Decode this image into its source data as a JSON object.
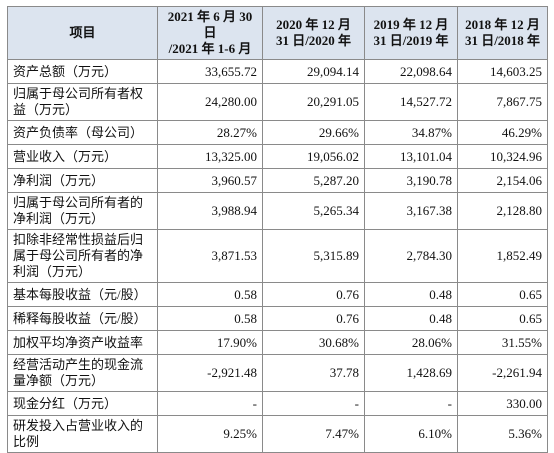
{
  "table": {
    "header": [
      [
        "项目"
      ],
      [
        "2021 年 6 月 30 日",
        "/2021 年 1-6 月"
      ],
      [
        "2020 年 12 月",
        "31 日/2020 年"
      ],
      [
        "2019 年 12 月",
        "31 日/2019 年"
      ],
      [
        "2018 年 12 月",
        "31 日/2018 年"
      ]
    ],
    "rows": [
      [
        "资产总额（万元）",
        "33,655.72",
        "29,094.14",
        "22,098.64",
        "14,603.25"
      ],
      [
        "归属于母公司所有者权益（万元）",
        "24,280.00",
        "20,291.05",
        "14,527.72",
        "7,867.75"
      ],
      [
        "资产负债率（母公司）",
        "28.27%",
        "29.66%",
        "34.87%",
        "46.29%"
      ],
      [
        "营业收入（万元）",
        "13,325.00",
        "19,056.02",
        "13,101.04",
        "10,324.96"
      ],
      [
        "净利润（万元）",
        "3,960.57",
        "5,287.20",
        "3,190.78",
        "2,154.06"
      ],
      [
        "归属于母公司所有者的净利润（万元）",
        "3,988.94",
        "5,265.34",
        "3,167.38",
        "2,128.80"
      ],
      [
        "扣除非经常性损益后归属于母公司所有者的净利润（万元）",
        "3,871.53",
        "5,315.89",
        "2,784.30",
        "1,852.49"
      ],
      [
        "基本每股收益（元/股）",
        "0.58",
        "0.76",
        "0.48",
        "0.65"
      ],
      [
        "稀释每股收益（元/股）",
        "0.58",
        "0.76",
        "0.48",
        "0.65"
      ],
      [
        "加权平均净资产收益率",
        "17.90%",
        "30.68%",
        "28.06%",
        "31.55%"
      ],
      [
        "经营活动产生的现金流量净额（万元）",
        "-2,921.48",
        "37.78",
        "1,428.69",
        "-2,261.94"
      ],
      [
        "现金分红（万元）",
        "-",
        "-",
        "-",
        "330.00"
      ],
      [
        "研发投入占营业收入的比例",
        "9.25%",
        "7.47%",
        "6.10%",
        "5.36%"
      ]
    ]
  }
}
